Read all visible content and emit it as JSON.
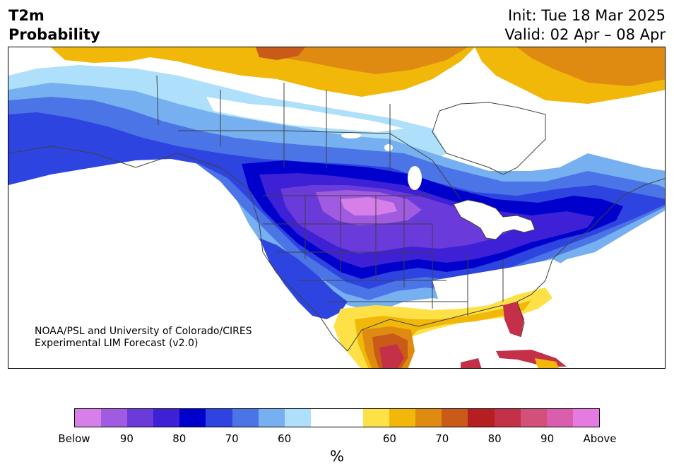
{
  "header": {
    "variable": "T2m",
    "product": "Probability",
    "init": "Init: Tue 18 Mar 2025",
    "valid": "Valid: 02 Apr – 08 Apr"
  },
  "credit": {
    "line1": "NOAA/PSL and University of Colorado/CIRES",
    "line2": "Experimental LIM Forecast (v2.0)"
  },
  "colorbar": {
    "unit": "%",
    "colors": [
      "#d77fe8",
      "#a05be0",
      "#6a3adb",
      "#3e20d6",
      "#0000cc",
      "#2e44e0",
      "#4b74e6",
      "#76b0f0",
      "#aee0fb",
      "#ffffff",
      "#ffffff",
      "#fee147",
      "#f1b80a",
      "#df8b12",
      "#c95a17",
      "#b51f22",
      "#c43048",
      "#d25079",
      "#da5eae",
      "#e57ae0"
    ],
    "labels": [
      "Below",
      "90",
      "80",
      "70",
      "60",
      "60",
      "70",
      "80",
      "90",
      "Above"
    ]
  },
  "legend_colors": {
    "below_strong": "#a05be0",
    "below": "#0000cc",
    "near_normal": "#ffffff",
    "above": "#f1b80a",
    "above_strong": "#c43048"
  }
}
